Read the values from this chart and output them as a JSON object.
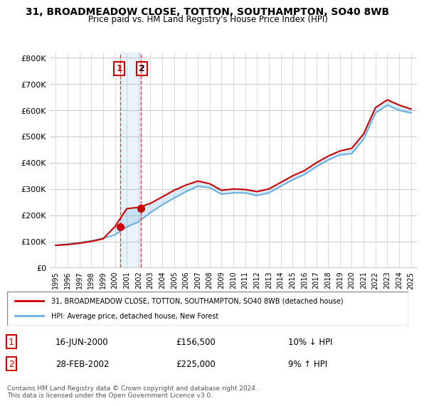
{
  "title": "31, BROADMEADOW CLOSE, TOTTON, SOUTHAMPTON, SO40 8WB",
  "subtitle": "Price paid vs. HM Land Registry's House Price Index (HPI)",
  "ylabel_ticks": [
    "£0",
    "£100K",
    "£200K",
    "£300K",
    "£400K",
    "£500K",
    "£600K",
    "£700K",
    "£800K"
  ],
  "ytick_values": [
    0,
    100000,
    200000,
    300000,
    400000,
    500000,
    600000,
    700000,
    800000
  ],
  "ylim": [
    0,
    820000
  ],
  "hpi_color": "#6ab0e0",
  "price_color": "#cc0000",
  "background_color": "#ffffff",
  "grid_color": "#cccccc",
  "transaction1": {
    "date": "16-JUN-2000",
    "price": 156500,
    "label": "1",
    "hpi_diff": "10% ↓ HPI",
    "year": 2000.46
  },
  "transaction2": {
    "date": "28-FEB-2002",
    "price": 225000,
    "label": "2",
    "hpi_diff": "9% ↑ HPI",
    "year": 2002.16
  },
  "legend_line1": "31, BROADMEADOW CLOSE, TOTTON, SOUTHAMPTON, SO40 8WB (detached house)",
  "legend_line2": "HPI: Average price, detached house, New Forest",
  "footnote": "Contains HM Land Registry data © Crown copyright and database right 2024.\nThis data is licensed under the Open Government Licence v3.0.",
  "x_years": [
    1995,
    1996,
    1997,
    1998,
    1999,
    2000,
    2001,
    2002,
    2003,
    2004,
    2005,
    2006,
    2007,
    2008,
    2009,
    2010,
    2011,
    2012,
    2013,
    2014,
    2015,
    2016,
    2017,
    2018,
    2019,
    2020,
    2021,
    2022,
    2023,
    2024,
    2025
  ],
  "hpi_values": [
    85000,
    90000,
    95000,
    102000,
    112000,
    125000,
    155000,
    175000,
    210000,
    240000,
    265000,
    290000,
    310000,
    305000,
    280000,
    285000,
    285000,
    275000,
    285000,
    310000,
    335000,
    355000,
    385000,
    410000,
    430000,
    435000,
    490000,
    590000,
    620000,
    600000,
    590000
  ],
  "price_values": [
    85000,
    88000,
    93000,
    100000,
    110000,
    156500,
    225000,
    230000,
    245000,
    270000,
    295000,
    315000,
    330000,
    320000,
    295000,
    300000,
    298000,
    290000,
    300000,
    325000,
    350000,
    370000,
    400000,
    425000,
    445000,
    455000,
    510000,
    610000,
    640000,
    620000,
    605000
  ]
}
